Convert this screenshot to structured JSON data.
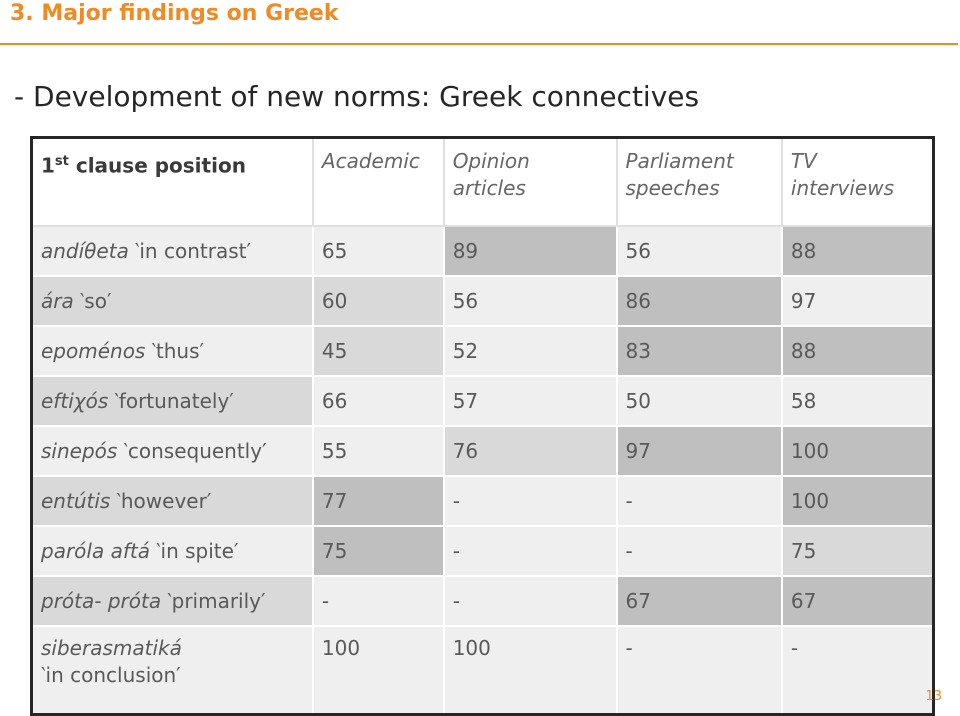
{
  "slide": {
    "title": "3. Major findings on Greek",
    "subtitle": "- Development of new norms: Greek connectives",
    "page_number": "13"
  },
  "table": {
    "corner_label": "1",
    "corner_sup": "st",
    "corner_rest": " clause position",
    "columns": [
      "Academic",
      "Opinion articles",
      "Parliament speeches",
      "TV interviews"
    ],
    "rows": [
      {
        "term": "andíθeta",
        "gloss": "in contrast",
        "values": [
          "65",
          "89",
          "56",
          "88"
        ]
      },
      {
        "term": "ára",
        "gloss": "so",
        "values": [
          "60",
          "56",
          "86",
          "97"
        ]
      },
      {
        "term": "epoménos",
        "gloss": "thus",
        "values": [
          "45",
          "52",
          "83",
          "88"
        ]
      },
      {
        "term": "eftiχós",
        "gloss": "fortunately",
        "values": [
          "66",
          "57",
          "50",
          "58"
        ]
      },
      {
        "term": "sinepós",
        "gloss": "consequently",
        "values": [
          "55",
          "76",
          "97",
          "100"
        ]
      },
      {
        "term": "entútis",
        "gloss": "however",
        "values": [
          "77",
          "-",
          "-",
          "100"
        ]
      },
      {
        "term": "paróla aftá",
        "gloss": "in spite",
        "values": [
          "75",
          "-",
          "-",
          "75"
        ]
      },
      {
        "term": "próta- próta",
        "gloss": "primarily",
        "values": [
          "-",
          "-",
          "67",
          "67"
        ]
      },
      {
        "term": "siberasmatiká",
        "gloss": "in conclusion",
        "values": [
          "100",
          "100",
          "-",
          "-"
        ]
      }
    ]
  },
  "colors": {
    "accent": "#f08a24",
    "light": "#efefef",
    "mid": "#d9d9d9",
    "dark": "#bfbfbf"
  }
}
